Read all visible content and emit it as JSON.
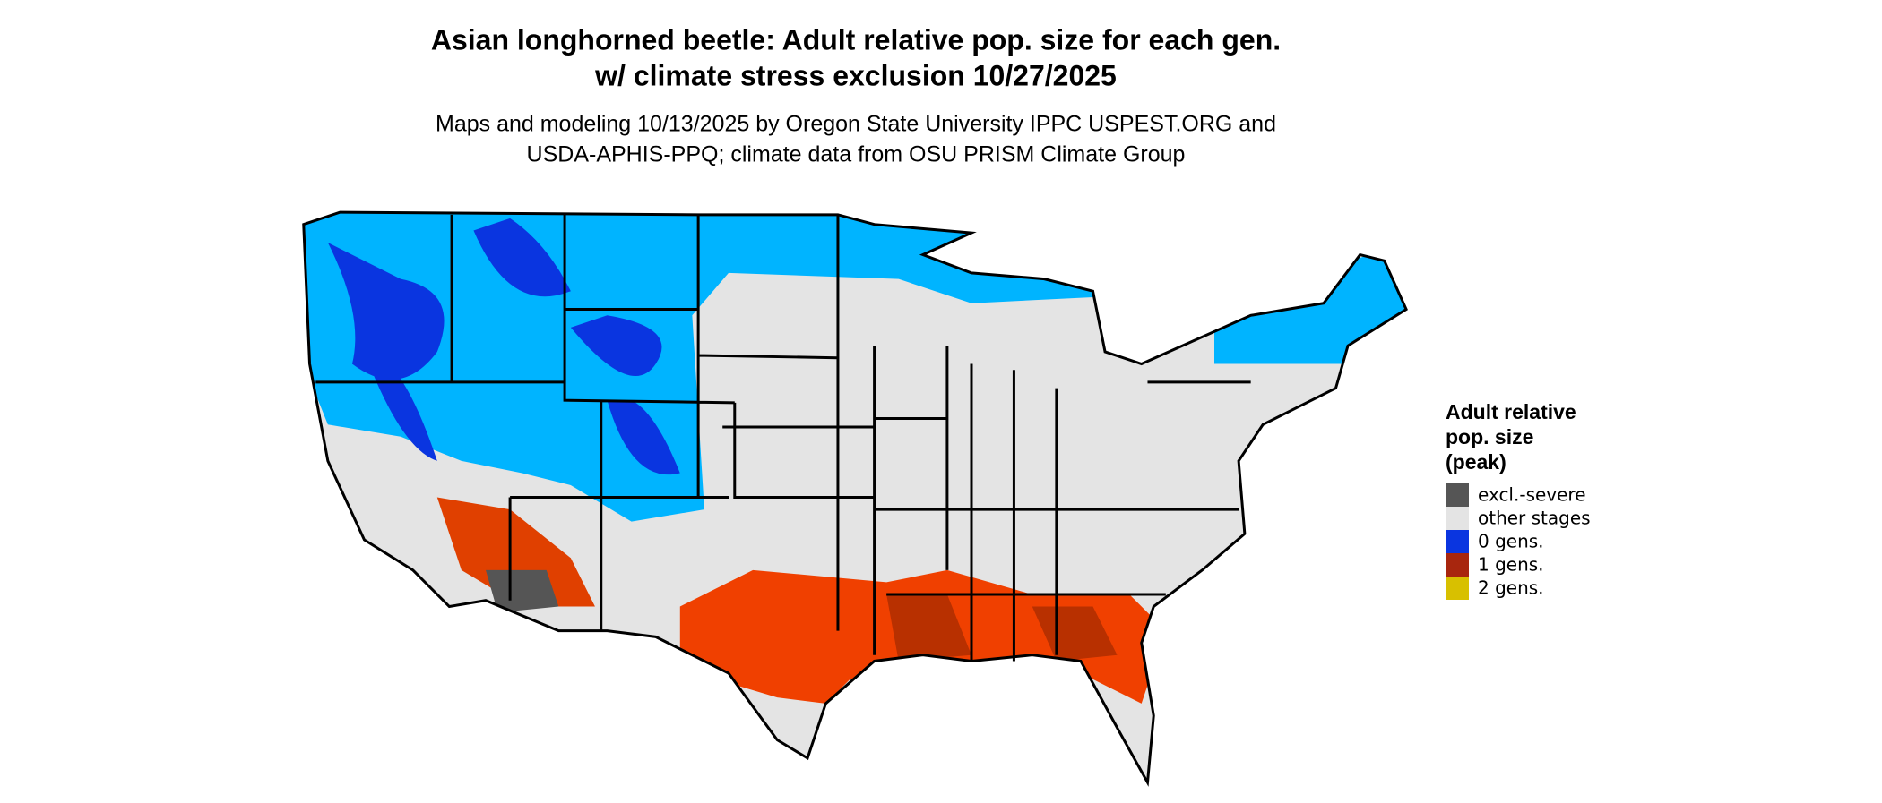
{
  "title": [
    "Asian longhorned beetle: Adult relative pop. size for each gen.",
    "w/ climate stress exclusion 10/27/2025"
  ],
  "subtitle": [
    "Maps and modeling 10/13/2025 by Oregon State University IPPC USPEST.ORG and",
    "USDA-APHIS-PPQ; climate data from OSU PRISM Climate Group"
  ],
  "legend": {
    "title": [
      "Adult relative",
      "pop. size",
      "(peak)"
    ],
    "items": [
      {
        "label": "excl.-severe",
        "color": "#555555"
      },
      {
        "label": "other stages",
        "color": "#e4e4e4"
      },
      {
        "label": "0 gens.",
        "color": "#0a35e0"
      },
      {
        "label": "1 gens.",
        "color": "#a8260e"
      },
      {
        "label": "2 gens.",
        "color": "#d8c000"
      }
    ]
  }
}
